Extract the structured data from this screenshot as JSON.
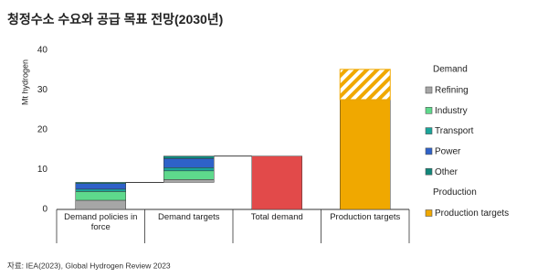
{
  "chart_data": {
    "type": "waterfall",
    "title": "청정수소 수요와 공급 목표 전망(2030년)",
    "y_label": "Mt hydrogen",
    "source": "자료: IEA(2023), Global Hydrogen Review 2023",
    "categories": [
      "Demand policies in force",
      "Demand targets",
      "Total demand",
      "Production targets"
    ],
    "continues": [
      false,
      true,
      false,
      false
    ],
    "connect_next": [
      true,
      true,
      false,
      false
    ],
    "ylim": [
      0,
      40
    ],
    "yticks": [
      0,
      10,
      20,
      30,
      40
    ],
    "grid": false,
    "series_groups": [
      {
        "title": "Demand",
        "series": [
          {
            "name": "Refining",
            "color": "#a6a6a6",
            "values": [
              2.3,
              0.7,
              null,
              null
            ]
          },
          {
            "name": "Industry",
            "color": "#5ed98c",
            "values": [
              2.2,
              2.2,
              null,
              null
            ]
          },
          {
            "name": "Transport",
            "color": "#1aa59a",
            "values": [
              0.6,
              0.8,
              null,
              null
            ]
          },
          {
            "name": "Power",
            "color": "#2e62c9",
            "values": [
              1.4,
              2.3,
              null,
              null
            ]
          },
          {
            "name": "Other",
            "color": "#12877a",
            "values": [
              0.3,
              0.6,
              null,
              null
            ]
          },
          {
            "color": "#e24a4a",
            "values": [
              null,
              null,
              13.4,
              null
            ]
          }
        ]
      },
      {
        "title": "Production",
        "series": [
          {
            "name": "Production targets",
            "color": "#f0a800",
            "values": [
              null,
              null,
              null,
              27.6
            ]
          },
          {
            "color": "#f0a800",
            "pattern": "hatch",
            "values": [
              null,
              null,
              null,
              7.6
            ]
          }
        ]
      }
    ]
  }
}
